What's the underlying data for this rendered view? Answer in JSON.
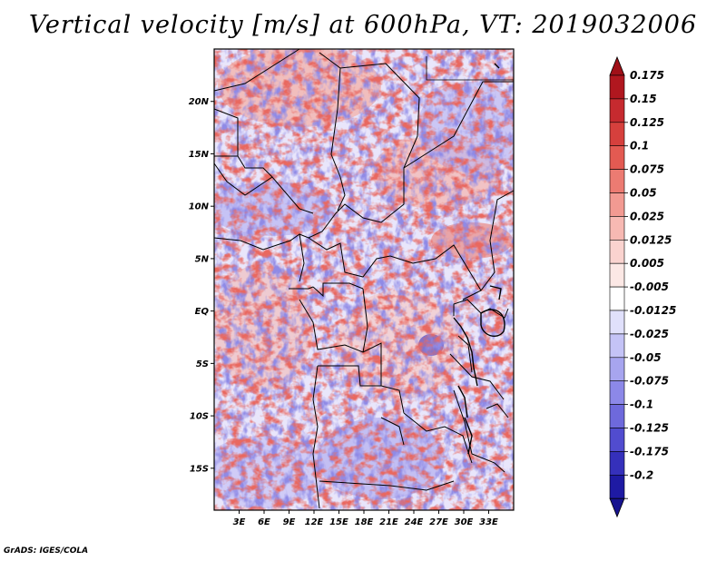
{
  "title": "Vertical velocity [m/s] at 600hPa, VT: 2019032006",
  "credit": "GrADS: IGES/COLA",
  "map": {
    "lon_range": [
      0,
      36
    ],
    "lat_range": [
      -19,
      25
    ],
    "lat_labels": [
      {
        "lat": 20,
        "label": "20N"
      },
      {
        "lat": 15,
        "label": "15N"
      },
      {
        "lat": 10,
        "label": "10N"
      },
      {
        "lat": 5,
        "label": "5N"
      },
      {
        "lat": 0,
        "label": "EQ"
      },
      {
        "lat": -5,
        "label": "5S"
      },
      {
        "lat": -10,
        "label": "10S"
      },
      {
        "lat": -15,
        "label": "15S"
      }
    ],
    "lon_labels": [
      {
        "lon": 3,
        "label": "3E"
      },
      {
        "lon": 6,
        "label": "6E"
      },
      {
        "lon": 9,
        "label": "9E"
      },
      {
        "lon": 12,
        "label": "12E"
      },
      {
        "lon": 15,
        "label": "15E"
      },
      {
        "lon": 18,
        "label": "18E"
      },
      {
        "lon": 21,
        "label": "21E"
      },
      {
        "lon": 24,
        "label": "24E"
      },
      {
        "lon": 27,
        "label": "27E"
      },
      {
        "lon": 30,
        "label": "30E"
      },
      {
        "lon": 33,
        "label": "33E"
      }
    ]
  },
  "colorbar": {
    "levels": [
      {
        "label": "0.175",
        "color": "#b0171f"
      },
      {
        "label": "0.15",
        "color": "#c62a2f"
      },
      {
        "label": "0.125",
        "color": "#d6403d"
      },
      {
        "label": "0.1",
        "color": "#e35a52"
      },
      {
        "label": "0.075",
        "color": "#ec7b72"
      },
      {
        "label": "0.05",
        "color": "#f29a92"
      },
      {
        "label": "0.025",
        "color": "#f7b9b3"
      },
      {
        "label": "0.0125",
        "color": "#fad3cf"
      },
      {
        "label": "0.005",
        "color": "#fce8e5"
      },
      {
        "label": "-0.005",
        "color": "#ffffff"
      },
      {
        "label": "-0.0125",
        "color": "#e0e0fb"
      },
      {
        "label": "-0.025",
        "color": "#c4c3f6"
      },
      {
        "label": "-0.05",
        "color": "#a7a5ef"
      },
      {
        "label": "-0.075",
        "color": "#8c88e8"
      },
      {
        "label": "-0.1",
        "color": "#6e69dc"
      },
      {
        "label": "-0.125",
        "color": "#514ccf"
      },
      {
        "label": "-0.175",
        "color": "#3530bb"
      },
      {
        "label": "-0.2",
        "color": "#1e1aa3"
      }
    ],
    "max_color": "#a01018",
    "min_color": "#17138f"
  }
}
